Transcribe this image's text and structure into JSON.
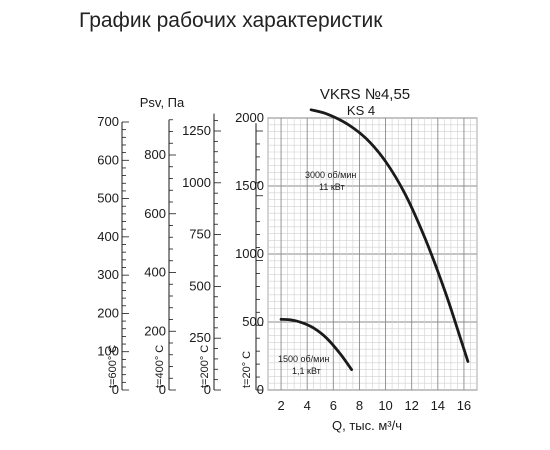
{
  "page_title": "График рабочих характеристик",
  "chart_data": {
    "type": "line",
    "title": "VKRS №4,55",
    "subtitle": "KS 4",
    "xlabel": "Q, тыс. м³/ч",
    "ylabel": "Psv, Па",
    "x_ticks": [
      2,
      4,
      6,
      8,
      10,
      12,
      14,
      16
    ],
    "xlim": [
      1,
      17
    ],
    "ylim": [
      0,
      2000
    ],
    "y_ticks": [
      0,
      500,
      1000,
      1500,
      2000
    ],
    "grid": true,
    "series": [
      {
        "name": "3000 об/мин",
        "annotation_line2": "11 кВт",
        "x": [
          4.3,
          5.5,
          7.0,
          8.5,
          10.0,
          11.5,
          13.0,
          14.5,
          15.6,
          16.3
        ],
        "values": [
          2060,
          2030,
          1960,
          1850,
          1680,
          1440,
          1120,
          740,
          420,
          210
        ]
      },
      {
        "name": "1500 об/мин",
        "annotation_line2": "1,1 кВт",
        "x": [
          2.0,
          2.8,
          3.6,
          4.5,
          5.5,
          6.5,
          7.4
        ],
        "values": [
          520,
          515,
          495,
          455,
          380,
          270,
          150
        ]
      }
    ],
    "density_scales": [
      {
        "label": "t=600° C",
        "ticks": [
          0,
          100,
          200,
          300,
          400,
          500,
          600,
          700
        ],
        "max": 700
      },
      {
        "label": "t=400° C",
        "ticks": [
          0,
          200,
          400,
          600,
          800
        ],
        "max": 920
      },
      {
        "label": "t=200° C",
        "ticks": [
          0,
          250,
          500,
          750,
          1000,
          1250
        ],
        "max": 1334
      },
      {
        "label": "t=20° C",
        "ticks": [
          0,
          500,
          1000,
          1500,
          2000
        ],
        "max": 2060
      }
    ]
  }
}
